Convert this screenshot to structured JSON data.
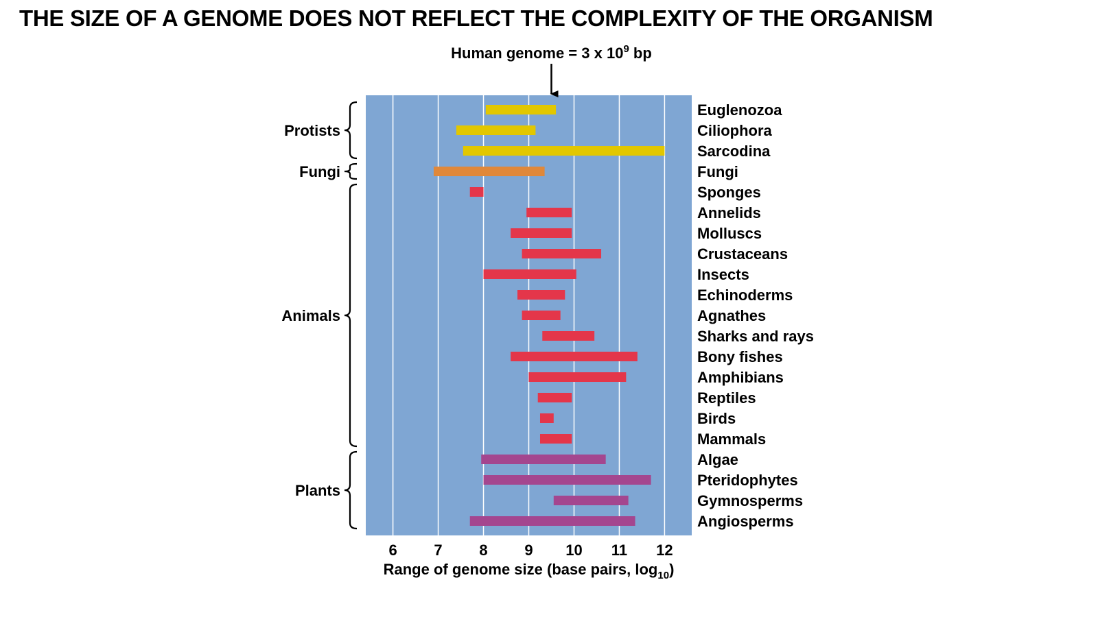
{
  "page": {
    "title": "THE SIZE OF A GENOME DOES NOT REFLECT THE COMPLEXITY OF THE ORGANISM"
  },
  "chart_data": {
    "type": "bar",
    "orientation": "horizontal-range",
    "title": "",
    "xlabel": "Range of genome size (base pairs, log10)",
    "xlim": [
      5.4,
      12.6
    ],
    "xticks": [
      6,
      7,
      8,
      9,
      10,
      11,
      12
    ],
    "grid": true,
    "background_color": "#7fa6d3",
    "annotation": {
      "text": "Human genome = 3 x 10^9 bp",
      "x": 9.5
    },
    "groups": [
      {
        "name": "Protists",
        "color": "#e2c700",
        "rows": [
          0,
          2
        ]
      },
      {
        "name": "Fungi",
        "color": "#e0883a",
        "rows": [
          3,
          3
        ]
      },
      {
        "name": "Animals",
        "color": "#e4364a",
        "rows": [
          4,
          16
        ]
      },
      {
        "name": "Plants",
        "color": "#a4468f",
        "rows": [
          17,
          20
        ]
      }
    ],
    "series": [
      {
        "label": "Euglenozoa",
        "min": 8.05,
        "max": 9.6,
        "group": "Protists"
      },
      {
        "label": "Ciliophora",
        "min": 7.4,
        "max": 9.15,
        "group": "Protists"
      },
      {
        "label": "Sarcodina",
        "min": 7.55,
        "max": 12.0,
        "group": "Protists"
      },
      {
        "label": "Fungi",
        "min": 6.9,
        "max": 9.35,
        "group": "Fungi"
      },
      {
        "label": "Sponges",
        "min": 7.7,
        "max": 8.0,
        "group": "Animals"
      },
      {
        "label": "Annelids",
        "min": 8.95,
        "max": 9.95,
        "group": "Animals"
      },
      {
        "label": "Molluscs",
        "min": 8.6,
        "max": 9.95,
        "group": "Animals"
      },
      {
        "label": "Crustaceans",
        "min": 8.85,
        "max": 10.6,
        "group": "Animals"
      },
      {
        "label": "Insects",
        "min": 8.0,
        "max": 10.05,
        "group": "Animals"
      },
      {
        "label": "Echinoderms",
        "min": 8.75,
        "max": 9.8,
        "group": "Animals"
      },
      {
        "label": "Agnathes",
        "min": 8.85,
        "max": 9.7,
        "group": "Animals"
      },
      {
        "label": "Sharks and rays",
        "min": 9.3,
        "max": 10.45,
        "group": "Animals"
      },
      {
        "label": "Bony fishes",
        "min": 8.6,
        "max": 11.4,
        "group": "Animals"
      },
      {
        "label": "Amphibians",
        "min": 9.0,
        "max": 11.15,
        "group": "Animals"
      },
      {
        "label": "Reptiles",
        "min": 9.2,
        "max": 9.95,
        "group": "Animals"
      },
      {
        "label": "Birds",
        "min": 9.25,
        "max": 9.55,
        "group": "Animals"
      },
      {
        "label": "Mammals",
        "min": 9.25,
        "max": 9.95,
        "group": "Animals"
      },
      {
        "label": "Algae",
        "min": 7.95,
        "max": 10.7,
        "group": "Plants"
      },
      {
        "label": "Pteridophytes",
        "min": 8.0,
        "max": 11.7,
        "group": "Plants"
      },
      {
        "label": "Gymnosperms",
        "min": 9.55,
        "max": 11.2,
        "group": "Plants"
      },
      {
        "label": "Angiosperms",
        "min": 7.7,
        "max": 11.35,
        "group": "Plants"
      }
    ]
  }
}
